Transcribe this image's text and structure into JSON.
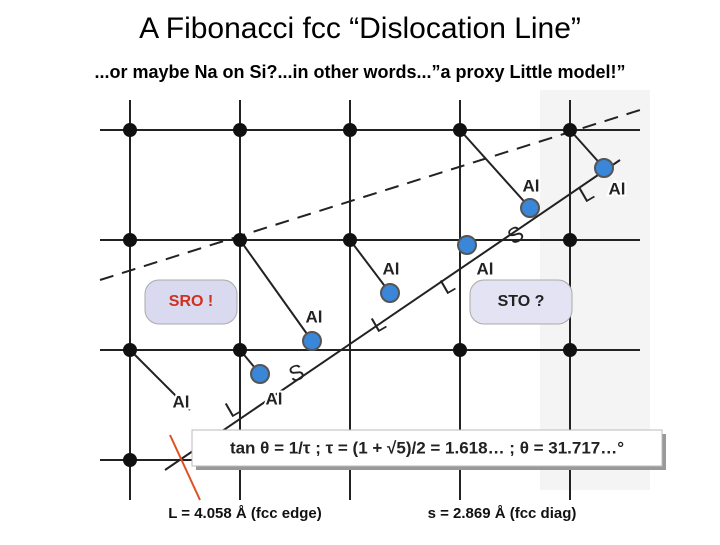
{
  "header": {
    "title": "A Fibonacci fcc “Dislocation Line”",
    "subtitle": "...or maybe Na on Si?...in other words...”a proxy Little model!”"
  },
  "atoms": [
    "Al",
    "Al",
    "Al",
    "Al",
    "Al",
    "Al",
    "Al"
  ],
  "letters": [
    "L",
    "L",
    "L",
    "L",
    "S",
    "S"
  ],
  "boxes": {
    "sro": "SRO !",
    "sto": "STO ?"
  },
  "equation": "tan θ = 1/τ ; τ = (1 + √5)/2 = 1.618… ; θ = 31.717…°",
  "footer": {
    "l_label": "L = 4.058 Å (fcc edge)",
    "s_label": "s = 2.869 Å (fcc diag)"
  }
}
